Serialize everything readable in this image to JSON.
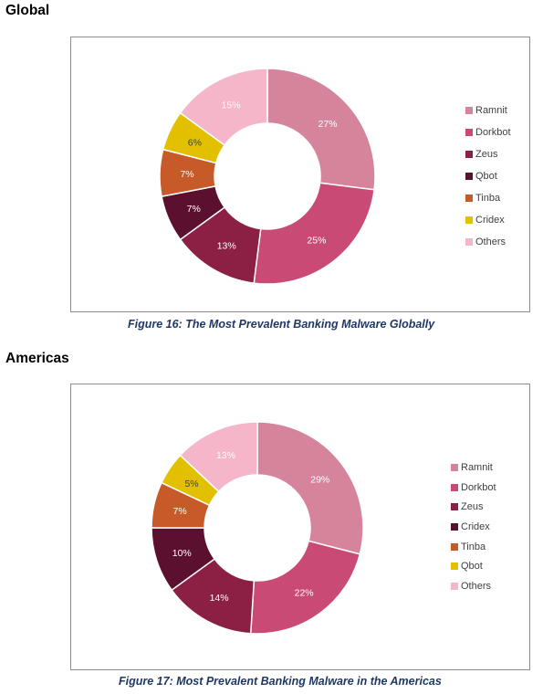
{
  "sections": [
    {
      "heading": "Global",
      "caption": "Figure 16: The Most Prevalent Banking Malware Globally"
    },
    {
      "heading": "Americas",
      "caption": "Figure 17: Most Prevalent Banking Malware in the Americas"
    }
  ],
  "chart_data": [
    {
      "type": "pie",
      "variant": "donut",
      "title": "",
      "categories": [
        "Ramnit",
        "Dorkbot",
        "Zeus",
        "Qbot",
        "Tinba",
        "Cridex",
        "Others"
      ],
      "values": [
        27,
        25,
        13,
        7,
        7,
        6,
        15
      ],
      "labels": [
        "27%",
        "25%",
        "13%",
        "7%",
        "7%",
        "6%",
        "15%"
      ],
      "colors": [
        "#d5849c",
        "#c94a74",
        "#8b1f44",
        "#5b1030",
        "#c65a28",
        "#e2c000",
        "#f4b6c8"
      ],
      "label_colors": [
        "#ffffff",
        "#ffffff",
        "#ffffff",
        "#ffffff",
        "#ffffff",
        "#404040",
        "#ffffff"
      ],
      "legend_position": "right"
    },
    {
      "type": "pie",
      "variant": "donut",
      "title": "",
      "categories": [
        "Ramnit",
        "Dorkbot",
        "Zeus",
        "Cridex",
        "Tinba",
        "Qbot",
        "Others"
      ],
      "values": [
        29,
        22,
        14,
        10,
        7,
        5,
        13
      ],
      "labels": [
        "29%",
        "22%",
        "14%",
        "10%",
        "7%",
        "5%",
        "13%"
      ],
      "colors": [
        "#d5849c",
        "#c94a74",
        "#8b1f44",
        "#5b1030",
        "#c65a28",
        "#e2c000",
        "#f4b6c8"
      ],
      "label_colors": [
        "#ffffff",
        "#ffffff",
        "#ffffff",
        "#ffffff",
        "#ffffff",
        "#404040",
        "#ffffff"
      ],
      "legend_position": "right"
    }
  ]
}
